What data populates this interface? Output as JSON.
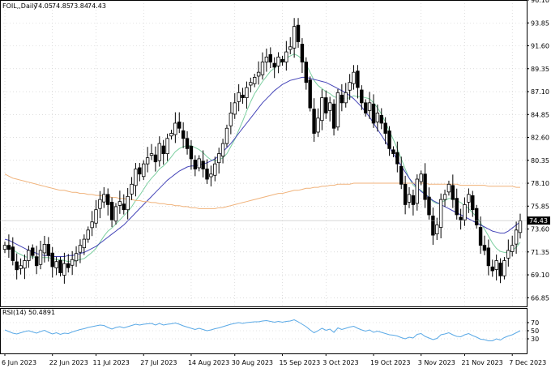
{
  "chart_data": {
    "type": "candlestick",
    "header": {
      "symbol": "FOIL,,Daily",
      "open": "74.05",
      "high": "74.85",
      "low": "73.84",
      "close": "74.43"
    },
    "last_price_label": "74.43",
    "last_price": 74.43,
    "price_axis": {
      "min": 66.0,
      "max": 96.1,
      "ticks": [
        "96.10",
        "93.85",
        "91.60",
        "89.35",
        "87.10",
        "84.85",
        "82.60",
        "80.35",
        "78.10",
        "75.85",
        "73.60",
        "71.35",
        "69.10",
        "66.85"
      ]
    },
    "date_axis": {
      "labels": [
        "6 Jun 2023",
        "22 Jun 2023",
        "11 Jul 2023",
        "27 Jul 2023",
        "14 Aug 2023",
        "30 Aug 2023",
        "15 Sep 2023",
        "3 Oct 2023",
        "19 Oct 2023",
        "3 Nov 2023",
        "21 Nov 2023",
        "7 Dec 2023"
      ]
    },
    "candles_close": [
      72.0,
      71.6,
      70.5,
      69.6,
      70.0,
      70.5,
      71.5,
      71.0,
      70.0,
      71.5,
      72.1,
      71.0,
      69.9,
      70.4,
      69.3,
      70.2,
      69.8,
      70.6,
      71.2,
      72.0,
      72.6,
      73.5,
      74.3,
      75.5,
      76.5,
      77.0,
      76.0,
      74.5,
      75.8,
      76.3,
      75.5,
      76.8,
      78.0,
      79.5,
      79.0,
      80.0,
      80.6,
      81.0,
      80.2,
      82.0,
      81.0,
      82.5,
      83.0,
      84.0,
      83.5,
      82.5,
      81.5,
      80.5,
      79.5,
      80.5,
      79.5,
      78.5,
      79.0,
      80.0,
      81.0,
      82.0,
      83.5,
      85.0,
      86.0,
      87.0,
      86.5,
      87.5,
      88.0,
      88.5,
      89.0,
      90.0,
      90.5,
      90.0,
      89.5,
      90.5,
      90.0,
      91.0,
      91.5,
      93.5,
      92.0,
      90.0,
      88.0,
      85.5,
      83.0,
      84.5,
      86.5,
      85.0,
      86.0,
      83.5,
      87.0,
      86.0,
      87.0,
      88.0,
      89.0,
      87.5,
      86.0,
      85.0,
      86.0,
      84.0,
      85.0,
      84.0,
      83.0,
      81.5,
      81.0,
      80.0,
      78.0,
      76.0,
      77.0,
      76.0,
      78.5,
      79.0,
      76.5,
      75.0,
      73.0,
      74.0,
      76.5,
      77.0,
      78.0,
      76.5,
      75.0,
      74.5,
      76.0,
      77.0,
      75.5,
      74.0,
      72.0,
      71.5,
      70.0,
      69.5,
      70.5,
      69.0,
      70.5,
      71.5,
      72.0,
      73.5,
      74.4
    ],
    "moving_averages": [
      {
        "color": "#7ccfa0",
        "values": [
          71.9,
          71.8,
          71.6,
          71.3,
          71.1,
          70.9,
          70.8,
          70.9,
          70.8,
          70.8,
          70.8,
          70.8,
          70.7,
          70.6,
          70.6,
          70.5,
          70.4,
          70.4,
          70.5,
          70.6,
          70.7,
          71.0,
          71.3,
          71.7,
          72.3,
          72.9,
          73.4,
          73.7,
          74.1,
          74.5,
          74.9,
          75.3,
          75.8,
          76.4,
          76.9,
          77.5,
          78.1,
          78.6,
          79.0,
          79.5,
          79.8,
          80.2,
          80.7,
          81.2,
          81.5,
          81.7,
          81.8,
          81.8,
          81.6,
          81.4,
          81.1,
          80.7,
          80.4,
          80.3,
          80.4,
          80.6,
          81.0,
          81.7,
          82.4,
          83.3,
          84.2,
          85.2,
          86.1,
          86.9,
          87.5,
          88.1,
          88.6,
          89.1,
          89.4,
          89.8,
          90.1,
          90.4,
          90.6,
          90.8,
          90.6,
          90.3,
          89.8,
          89.0,
          88.2,
          87.7,
          87.4,
          87.1,
          86.9,
          86.6,
          86.5,
          86.4,
          86.4,
          86.5,
          86.7,
          86.6,
          86.6,
          86.5,
          86.4,
          86.0,
          85.5,
          84.9,
          84.1,
          83.2,
          82.4,
          81.5,
          80.5,
          79.5,
          78.6,
          77.9,
          77.6,
          77.4,
          77.1,
          76.7,
          76.3,
          76.1,
          76.2,
          76.4,
          76.6,
          76.6,
          76.4,
          76.2,
          75.9,
          75.6,
          75.2,
          74.8,
          74.2,
          73.6,
          72.9,
          72.2,
          71.7,
          71.4,
          71.3,
          71.3,
          71.5,
          71.8,
          72.3
        ]
      },
      {
        "color": "#4545b8",
        "values": [
          72.6,
          72.5,
          72.3,
          72.1,
          71.9,
          71.7,
          71.5,
          71.4,
          71.2,
          71.1,
          71.0,
          71.0,
          70.9,
          70.9,
          70.9,
          70.9,
          71.0,
          71.0,
          71.1,
          71.2,
          71.3,
          71.5,
          71.7,
          71.9,
          72.2,
          72.5,
          72.8,
          73.1,
          73.4,
          73.7,
          74.0,
          74.4,
          74.8,
          75.2,
          75.6,
          76.0,
          76.4,
          76.8,
          77.2,
          77.6,
          78.0,
          78.4,
          78.7,
          79.0,
          79.3,
          79.5,
          79.7,
          79.8,
          79.8,
          79.9,
          80.0,
          80.1,
          80.3,
          80.5,
          80.8,
          81.2,
          81.6,
          82.0,
          82.5,
          83.0,
          83.5,
          84.0,
          84.5,
          85.0,
          85.5,
          86.0,
          86.4,
          86.8,
          87.2,
          87.5,
          87.8,
          88.0,
          88.2,
          88.3,
          88.4,
          88.5,
          88.5,
          88.4,
          88.3,
          88.2,
          88.1,
          88.0,
          87.8,
          87.6,
          87.4,
          87.2,
          87.0,
          86.7,
          86.4,
          86.0,
          85.6,
          85.1,
          84.6,
          84.0,
          83.4,
          82.8,
          82.2,
          81.6,
          81.0,
          80.4,
          79.8,
          79.2,
          78.6,
          78.1,
          77.7,
          77.3,
          77.0,
          76.7,
          76.4,
          76.2,
          76.0,
          75.8,
          75.6,
          75.4,
          75.2,
          75.0,
          74.8,
          74.6,
          74.4,
          74.2,
          74.0,
          73.8,
          73.6,
          73.4,
          73.3,
          73.2,
          73.2,
          73.4,
          73.7,
          74.0,
          74.3
        ]
      },
      {
        "color": "#f0b27a",
        "values": [
          79.0,
          78.8,
          78.6,
          78.5,
          78.4,
          78.3,
          78.2,
          78.1,
          78.0,
          77.9,
          77.8,
          77.7,
          77.6,
          77.5,
          77.4,
          77.4,
          77.3,
          77.2,
          77.2,
          77.1,
          77.1,
          77.0,
          77.0,
          76.9,
          76.9,
          76.8,
          76.8,
          76.7,
          76.7,
          76.6,
          76.6,
          76.5,
          76.5,
          76.4,
          76.4,
          76.3,
          76.3,
          76.2,
          76.2,
          76.1,
          76.1,
          76.0,
          76.0,
          75.9,
          75.9,
          75.8,
          75.8,
          75.7,
          75.7,
          75.6,
          75.6,
          75.6,
          75.6,
          75.6,
          75.7,
          75.7,
          75.8,
          75.9,
          76.0,
          76.1,
          76.2,
          76.3,
          76.4,
          76.5,
          76.6,
          76.7,
          76.8,
          76.9,
          77.0,
          77.1,
          77.1,
          77.2,
          77.3,
          77.4,
          77.4,
          77.5,
          77.6,
          77.6,
          77.7,
          77.7,
          77.8,
          77.8,
          77.9,
          77.9,
          78.0,
          78.0,
          78.0,
          78.0,
          78.1,
          78.1,
          78.1,
          78.1,
          78.1,
          78.1,
          78.1,
          78.1,
          78.1,
          78.1,
          78.1,
          78.1,
          78.1,
          78.1,
          78.1,
          78.1,
          78.1,
          78.1,
          78.1,
          78.0,
          78.0,
          78.0,
          78.0,
          78.0,
          78.0,
          78.0,
          78.0,
          77.9,
          77.9,
          77.9,
          77.9,
          77.9,
          77.9,
          77.9,
          77.8,
          77.8,
          77.8,
          77.8,
          77.8,
          77.8,
          77.8,
          77.7,
          77.7
        ]
      }
    ],
    "rsi": {
      "label": "RSI(14) 50.4891",
      "ticks": [
        "70",
        "50",
        "30"
      ],
      "min": 0,
      "max": 100,
      "color": "#5aa9e6",
      "values": [
        52,
        48,
        44,
        42,
        45,
        48,
        50,
        47,
        44,
        48,
        51,
        46,
        42,
        45,
        41,
        44,
        43,
        47,
        50,
        53,
        55,
        58,
        60,
        62,
        64,
        63,
        58,
        54,
        58,
        60,
        57,
        60,
        63,
        66,
        64,
        66,
        67,
        68,
        64,
        68,
        64,
        66,
        67,
        69,
        66,
        62,
        59,
        56,
        53,
        56,
        53,
        50,
        52,
        55,
        57,
        60,
        63,
        66,
        68,
        70,
        68,
        70,
        71,
        72,
        72,
        74,
        75,
        73,
        71,
        73,
        71,
        73,
        74,
        77,
        72,
        66,
        60,
        52,
        45,
        50,
        56,
        51,
        54,
        46,
        57,
        53,
        56,
        59,
        61,
        56,
        52,
        49,
        52,
        46,
        49,
        46,
        43,
        40,
        39,
        37,
        33,
        30,
        34,
        32,
        41,
        43,
        36,
        32,
        28,
        31,
        40,
        42,
        45,
        40,
        36,
        35,
        40,
        43,
        38,
        34,
        29,
        28,
        25,
        25,
        30,
        27,
        33,
        37,
        40,
        45,
        50
      ]
    }
  }
}
